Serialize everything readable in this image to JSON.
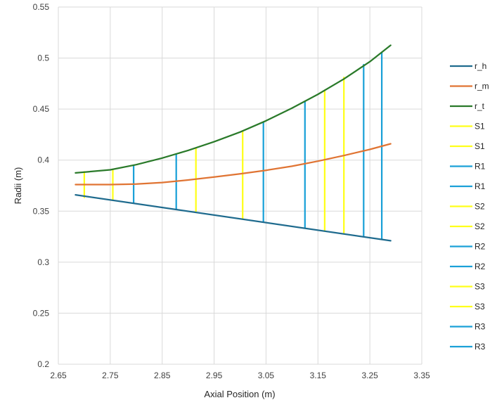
{
  "chart_data": {
    "type": "line",
    "xlabel": "Axial Position (m)",
    "ylabel": "Radii (m)",
    "xlim": [
      2.65,
      3.35
    ],
    "ylim": [
      0.2,
      0.55
    ],
    "xticks": [
      2.65,
      2.75,
      2.85,
      2.95,
      3.05,
      3.15,
      3.25,
      3.35
    ],
    "yticks": [
      0.2,
      0.25,
      0.3,
      0.35,
      0.4,
      0.45,
      0.5,
      0.55
    ],
    "xtick_labels": [
      "2.65",
      "2.75",
      "2.85",
      "2.95",
      "3.05",
      "3.15",
      "3.25",
      "3.35"
    ],
    "ytick_labels": [
      "0.2",
      "0.25",
      "0.3",
      "0.35",
      "0.4",
      "0.45",
      "0.5",
      "0.55"
    ],
    "grid": true,
    "legend_position": "right",
    "series": [
      {
        "name": "r_h",
        "color": "#1F6B8E",
        "x": [
          2.683,
          3.29
        ],
        "y": [
          0.366,
          0.321
        ]
      },
      {
        "name": "r_m",
        "color": "#E07433",
        "x": [
          2.683,
          2.75,
          2.8,
          2.85,
          2.9,
          2.95,
          3.0,
          3.05,
          3.1,
          3.15,
          3.2,
          3.25,
          3.29
        ],
        "y": [
          0.376,
          0.376,
          0.3765,
          0.378,
          0.3805,
          0.3835,
          0.3865,
          0.39,
          0.394,
          0.399,
          0.4045,
          0.4105,
          0.416
        ]
      },
      {
        "name": "r_t",
        "color": "#2A7A2A",
        "x": [
          2.683,
          2.75,
          2.8,
          2.85,
          2.9,
          2.95,
          3.0,
          3.05,
          3.1,
          3.15,
          3.2,
          3.25,
          3.29
        ],
        "y": [
          0.3875,
          0.3905,
          0.3955,
          0.402,
          0.4095,
          0.418,
          0.4275,
          0.4385,
          0.451,
          0.4645,
          0.4795,
          0.4965,
          0.5125
        ]
      },
      {
        "name": "S1",
        "color": "#FFFF1A",
        "x": [
          2.7,
          2.7
        ],
        "y": [
          0.3635,
          0.3885
        ]
      },
      {
        "name": "S1",
        "color": "#FFFF1A",
        "x": [
          2.755,
          2.755
        ],
        "y": [
          0.3605,
          0.391
        ]
      },
      {
        "name": "R1",
        "color": "#1BA1D8",
        "x": [
          2.795,
          2.795
        ],
        "y": [
          0.358,
          0.395
        ]
      },
      {
        "name": "R1",
        "color": "#1BA1D8",
        "x": [
          2.877,
          2.877
        ],
        "y": [
          0.352,
          0.4055
        ]
      },
      {
        "name": "S2",
        "color": "#FFFF1A",
        "x": [
          2.915,
          2.915
        ],
        "y": [
          0.3495,
          0.411
        ]
      },
      {
        "name": "S2",
        "color": "#FFFF1A",
        "x": [
          3.005,
          3.005
        ],
        "y": [
          0.3425,
          0.4285
        ]
      },
      {
        "name": "R2",
        "color": "#1BA1D8",
        "x": [
          3.045,
          3.045
        ],
        "y": [
          0.3395,
          0.4365
        ]
      },
      {
        "name": "R2",
        "color": "#1BA1D8",
        "x": [
          3.125,
          3.125
        ],
        "y": [
          0.3335,
          0.4575
        ]
      },
      {
        "name": "S3",
        "color": "#FFFF1A",
        "x": [
          3.163,
          3.163
        ],
        "y": [
          0.3305,
          0.4685
        ]
      },
      {
        "name": "S3",
        "color": "#FFFF1A",
        "x": [
          3.2,
          3.2
        ],
        "y": [
          0.328,
          0.481
        ]
      },
      {
        "name": "R3",
        "color": "#1BA1D8",
        "x": [
          3.238,
          3.238
        ],
        "y": [
          0.325,
          0.4935
        ]
      },
      {
        "name": "R3",
        "color": "#1BA1D8",
        "x": [
          3.273,
          3.273
        ],
        "y": [
          0.3225,
          0.505
        ]
      }
    ]
  }
}
